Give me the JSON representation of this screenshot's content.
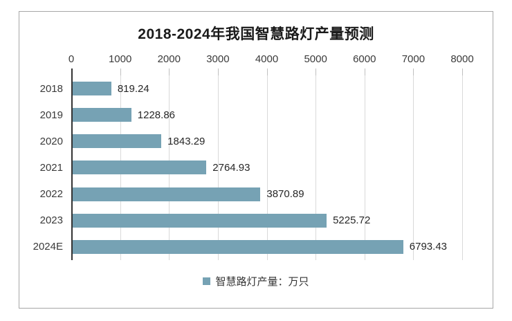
{
  "chart_data": {
    "type": "bar",
    "orientation": "horizontal",
    "title": "2018-2024年我国智慧路灯产量预测",
    "categories": [
      "2018",
      "2019",
      "2020",
      "2021",
      "2022",
      "2023",
      "2024E"
    ],
    "values": [
      819.24,
      1228.86,
      1843.29,
      2764.93,
      3870.89,
      5225.72,
      6793.43
    ],
    "data_labels": [
      "819.24",
      "1228.86",
      "1843.29",
      "2764.93",
      "3870.89",
      "5225.72",
      "6793.43"
    ],
    "xlim": [
      0,
      8000
    ],
    "x_ticks": [
      0,
      1000,
      2000,
      3000,
      4000,
      5000,
      6000,
      7000,
      8000
    ],
    "axis_position": "top",
    "grid": "vertical",
    "legend": {
      "label": "智慧路灯产量：万只",
      "position": "bottom"
    }
  },
  "style": {
    "bar_color": "#76a2b4",
    "grid_color": "#d9d9d9",
    "axis_line_color": "#333333",
    "frame_border_color": "#a6a6a6",
    "title_color": "#1a1a1a",
    "text_color": "#3a3a3a",
    "background": "#ffffff"
  }
}
